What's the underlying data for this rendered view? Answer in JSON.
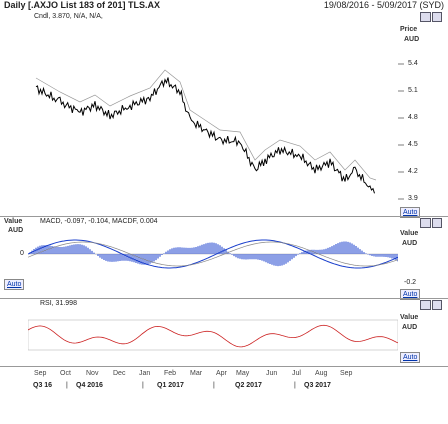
{
  "header": {
    "title": "Daily [.AXJO List 183 of 201] TLS.AX",
    "date_range": "19/08/2016 - 5/09/2017 (SYD)",
    "ohlc_summary": "Cndl, 3.870, N/A, N/A,"
  },
  "price_panel": {
    "axis_title_1": "Price",
    "axis_title_2": "AUD",
    "ticks": [
      "5.4",
      "5.1",
      "4.8",
      "4.5",
      "4.2",
      "3.9"
    ],
    "auto_label": "Auto"
  },
  "macd_panel": {
    "label_left_1": "Value",
    "label_left_2": "AUD",
    "zero_tick": "0",
    "indicator": "MACD, -0.097, -0.104, MACDF, 0.004",
    "axis_title_1": "Value",
    "axis_title_2": "AUD",
    "tick": "-0.2",
    "auto_label_right": "Auto",
    "auto_label_left": "Auto"
  },
  "rsi_panel": {
    "indicator": "RSI, 31.998",
    "axis_title_1": "Value",
    "axis_title_2": "AUD",
    "auto_label": "Auto"
  },
  "x_axis": {
    "months": [
      "Sep",
      "Oct",
      "Nov",
      "Dec",
      "Jan",
      "Feb",
      "Mar",
      "Apr",
      "May",
      "Jun",
      "Jul",
      "Aug",
      "Sep"
    ],
    "quarters": [
      "Q3 16",
      "Q4 2016",
      "Q1 2017",
      "Q2 2017",
      "Q3 2017"
    ]
  },
  "colors": {
    "price_line": "#000000",
    "macd_hist": "#1a3fcc",
    "macd_line": "#1a3fcc",
    "rsi_line": "#cc2222",
    "panel_border": "#999999"
  }
}
